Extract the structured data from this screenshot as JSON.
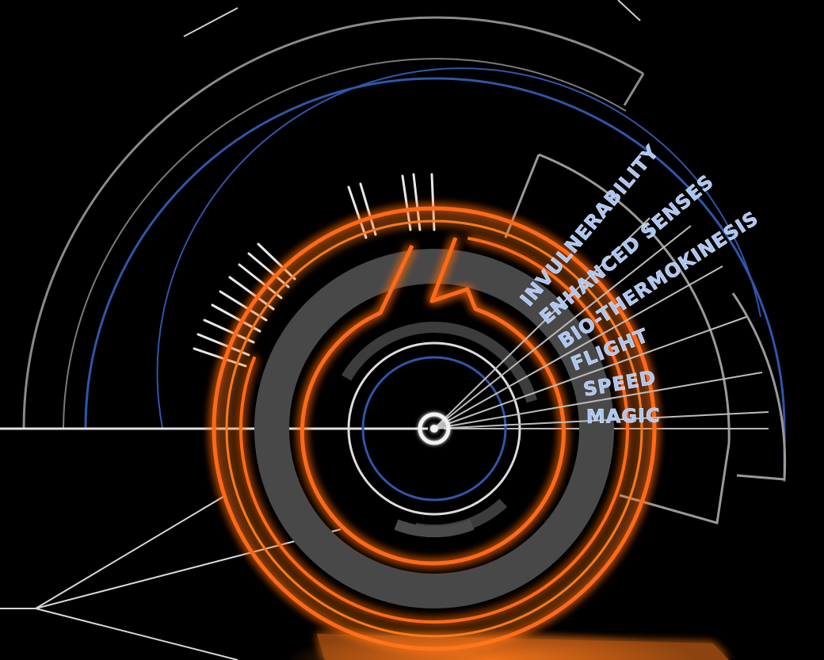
{
  "hud": {
    "powers": [
      {
        "label": "INVULNERABILITY"
      },
      {
        "label": "ENHANCED SENSES"
      },
      {
        "label": "BIO-THERMOKINESIS"
      },
      {
        "label": "FLIGHT"
      },
      {
        "label": "SPEED"
      },
      {
        "label": "MAGIC"
      }
    ],
    "colors": {
      "background": "#000000",
      "orange": "#ff6a13",
      "orange_glow": "#ff8a2a",
      "white_line": "#d8d8d8",
      "blue_line": "#2f56a8",
      "gray_band": "#4a4a4a",
      "label_fill": "#a9c4f2"
    }
  }
}
